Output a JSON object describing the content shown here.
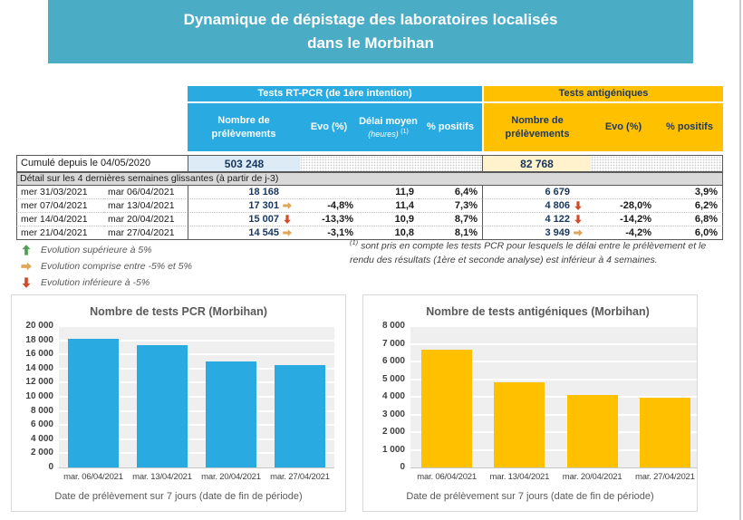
{
  "page": {
    "title_line1": "Dynamique de dépistage des laboratoires localisés",
    "title_line2": "dans le Morbihan"
  },
  "colors": {
    "banner": "#4BACC6",
    "pcr_blue": "#29ABE2",
    "antigenic_yellow": "#FFC000",
    "pcr_light": "#DDEBF7",
    "antigenic_light": "#FFF2CC",
    "detail_band_gray": "#D9D9D9",
    "trend_up": "#4F9E53",
    "trend_flat": "#DFA75A",
    "trend_down": "#D14B28"
  },
  "table": {
    "pcr_section_label": "Tests RT-PCR (de 1ère intention)",
    "antigenic_section_label": "Tests antigéniques",
    "columns": {
      "n": "Nombre de prélèvements",
      "evo": "Evo (%)",
      "delai_line1": "Délai moyen",
      "delai_line2": "(heures)",
      "delai_sup": "(1)",
      "positifs": "% positifs",
      "ag_n": "Nombre de prélèvements",
      "ag_evo": "Evo (%)",
      "ag_positifs": "% positifs"
    },
    "cumul": {
      "label": "Cumulé depuis le 04/05/2020",
      "pcr_total": "503 248",
      "antigenic_total": "82 768"
    },
    "detail_band": "Détail sur les 4 dernières semaines glissantes (à partir de j-3)",
    "rows": [
      {
        "start": "mer 31/03/2021",
        "end": "mar 06/04/2021",
        "pcr_n": "18 168",
        "pcr_trend": null,
        "pcr_evo": "",
        "delai": "11,9",
        "pcr_pos": "6,4%",
        "ag_n": "6 679",
        "ag_trend": null,
        "ag_evo": "",
        "ag_pos": "3,9%"
      },
      {
        "start": "mer 07/04/2021",
        "end": "mar 13/04/2021",
        "pcr_n": "17 301",
        "pcr_trend": "flat",
        "pcr_evo": "-4,8%",
        "delai": "11,4",
        "pcr_pos": "7,3%",
        "ag_n": "4 806",
        "ag_trend": "down",
        "ag_evo": "-28,0%",
        "ag_pos": "6,2%"
      },
      {
        "start": "mer 14/04/2021",
        "end": "mar 20/04/2021",
        "pcr_n": "15 007",
        "pcr_trend": "down",
        "pcr_evo": "-13,3%",
        "delai": "10,9",
        "pcr_pos": "8,7%",
        "ag_n": "4 122",
        "ag_trend": "down",
        "ag_evo": "-14,2%",
        "ag_pos": "6,8%"
      },
      {
        "start": "mer 21/04/2021",
        "end": "mar 27/04/2021",
        "pcr_n": "14 545",
        "pcr_trend": "flat",
        "pcr_evo": "-3,1%",
        "delai": "10,8",
        "pcr_pos": "8,1%",
        "ag_n": "3 949",
        "ag_trend": "flat",
        "ag_evo": "-4,2%",
        "ag_pos": "6,0%"
      }
    ]
  },
  "legend": {
    "items": [
      {
        "trend": "up",
        "label": "Evolution supérieure à 5%"
      },
      {
        "trend": "flat",
        "label": "Evolution comprise entre -5% et 5%"
      },
      {
        "trend": "down",
        "label": "Evolution inférieure à -5%"
      }
    ]
  },
  "footnote": {
    "sup": "(1)",
    "text": "sont pris en compte les tests PCR pour lesquels le délai entre le prélèvement et le rendu des résultats (1ère et seconde analyse) est inférieur à 4 semaines."
  },
  "chart_data": [
    {
      "type": "bar",
      "title": "Nombre de tests PCR (Morbihan)",
      "categories": [
        "mar. 06/04/2021",
        "mar. 13/04/2021",
        "mar. 20/04/2021",
        "mar. 27/04/2021"
      ],
      "values": [
        18168,
        17301,
        15007,
        14545
      ],
      "xlabel": "Date de prélèvement sur 7 jours (date de fin de période)",
      "ylabel": "",
      "ylim": [
        0,
        20000
      ],
      "ytick_step": 2000,
      "bar_color": "#29ABE2",
      "grid": true,
      "legend_position": "none"
    },
    {
      "type": "bar",
      "title": "Nombre de tests antigéniques (Morbihan)",
      "categories": [
        "mar. 06/04/2021",
        "mar. 13/04/2021",
        "mar. 20/04/2021",
        "mar. 27/04/2021"
      ],
      "values": [
        6679,
        4806,
        4122,
        3949
      ],
      "xlabel": "Date de prélèvement sur 7 jours (date de fin de période)",
      "ylabel": "",
      "ylim": [
        0,
        8000
      ],
      "ytick_step": 1000,
      "bar_color": "#FFC000",
      "grid": true,
      "legend_position": "none"
    }
  ]
}
